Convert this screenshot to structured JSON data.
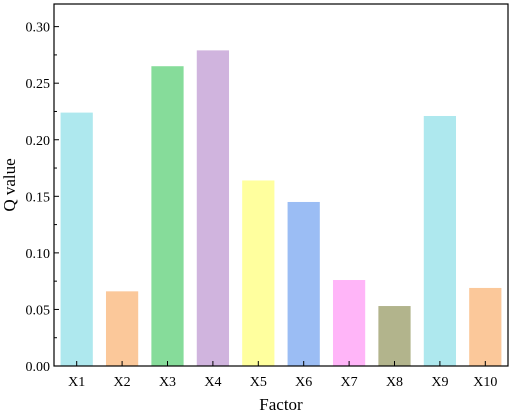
{
  "chart_data": {
    "type": "bar",
    "xlabel": "Factor",
    "ylabel": "Q value",
    "ylim": [
      0.0,
      0.32
    ],
    "yticks": [
      "0.00",
      "0.05",
      "0.10",
      "0.15",
      "0.20",
      "0.25",
      "0.30"
    ],
    "grid": false,
    "categories": [
      "X1",
      "X2",
      "X3",
      "X4",
      "X5",
      "X6",
      "X7",
      "X8",
      "X9",
      "X10"
    ],
    "values": [
      0.224,
      0.066,
      0.265,
      0.279,
      0.164,
      0.145,
      0.076,
      0.053,
      0.221,
      0.069
    ],
    "colors": [
      "#aee8ee",
      "#fbc89a",
      "#86dc9a",
      "#d0b4de",
      "#ffff9e",
      "#9bbdf4",
      "#ffb5f8",
      "#b2b48c",
      "#aee8ee",
      "#fbc89a"
    ]
  }
}
